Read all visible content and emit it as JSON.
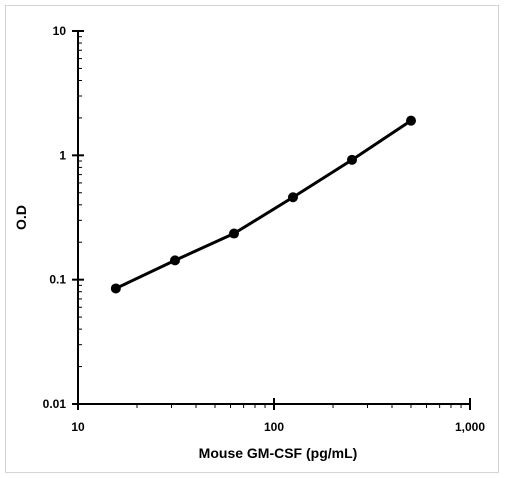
{
  "chart_data": {
    "type": "line",
    "title": "",
    "xlabel": "Mouse GM-CSF (pg/mL)",
    "ylabel": "O.D",
    "x_scale": "log",
    "y_scale": "log",
    "xlim": [
      10,
      1000
    ],
    "ylim": [
      0.01,
      10
    ],
    "x_ticks": [
      10,
      100,
      1000
    ],
    "x_tick_labels": [
      "10",
      "100",
      "1,000"
    ],
    "y_ticks": [
      0.01,
      0.1,
      1,
      10
    ],
    "y_tick_labels": [
      "0.01",
      "0.1",
      "1",
      "10"
    ],
    "grid": false,
    "legend": "none",
    "series": [
      {
        "x": [
          15.6,
          31.25,
          62.5,
          125,
          250,
          500
        ],
        "y": [
          0.085,
          0.143,
          0.235,
          0.46,
          0.92,
          1.9
        ],
        "color": "#000000",
        "marker": "circle"
      }
    ]
  }
}
